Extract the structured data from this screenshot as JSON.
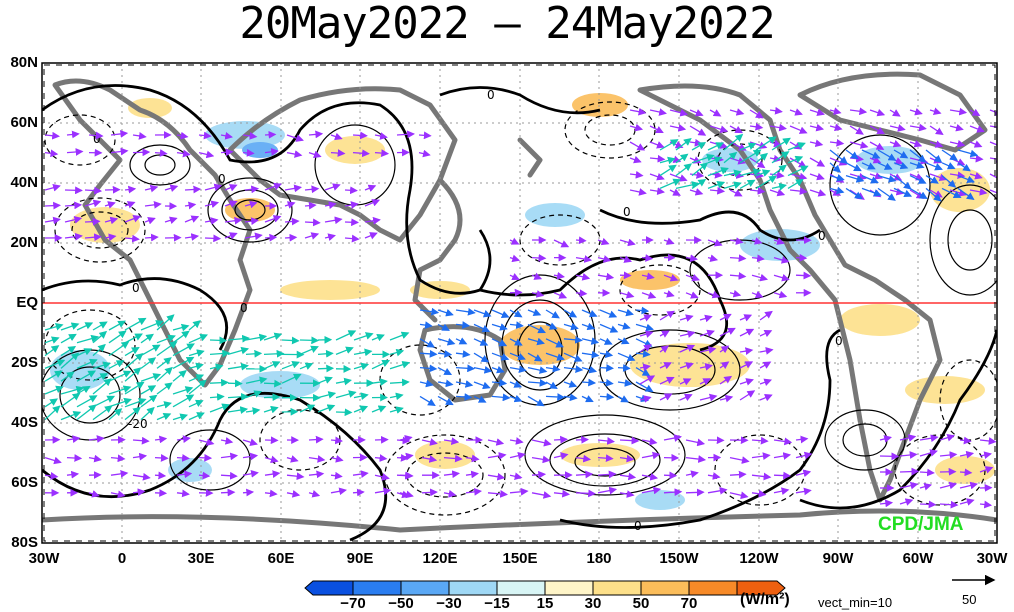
{
  "title": "20May2022 – 24May2022",
  "credit": "CPD/JMA",
  "lat_labels": [
    "80N",
    "60N",
    "40N",
    "20N",
    "EQ",
    "20S",
    "40S",
    "60S",
    "80S"
  ],
  "lon_labels": [
    "30W",
    "0",
    "30E",
    "60E",
    "90E",
    "120E",
    "150E",
    "180",
    "150W",
    "120W",
    "90W",
    "60W",
    "30W"
  ],
  "colorbar": {
    "labels": [
      "−70",
      "−50",
      "−30",
      "−15",
      "15",
      "30",
      "50",
      "70"
    ],
    "colors": [
      "#0a50e0",
      "#2a7df0",
      "#5aa8f5",
      "#9fd8f5",
      "#d8f5f5",
      "#fff5c8",
      "#fde08a",
      "#fbbd5a",
      "#f78a28",
      "#ee6010"
    ],
    "units": "(W/m²)",
    "vector_note": "vect_min=10",
    "ref_vector": "50"
  },
  "contour_labels": [
    "0",
    "0",
    "0",
    "0",
    "0",
    "0",
    "0",
    "0",
    "0",
    "-20"
  ],
  "colors": {
    "land": "#777777",
    "grid": "#999999",
    "equator": "#ff3333",
    "vector_weak": "#9b30ff",
    "vector_mid": "#1e6cf0",
    "vector_strong": "#10c8b0"
  }
}
